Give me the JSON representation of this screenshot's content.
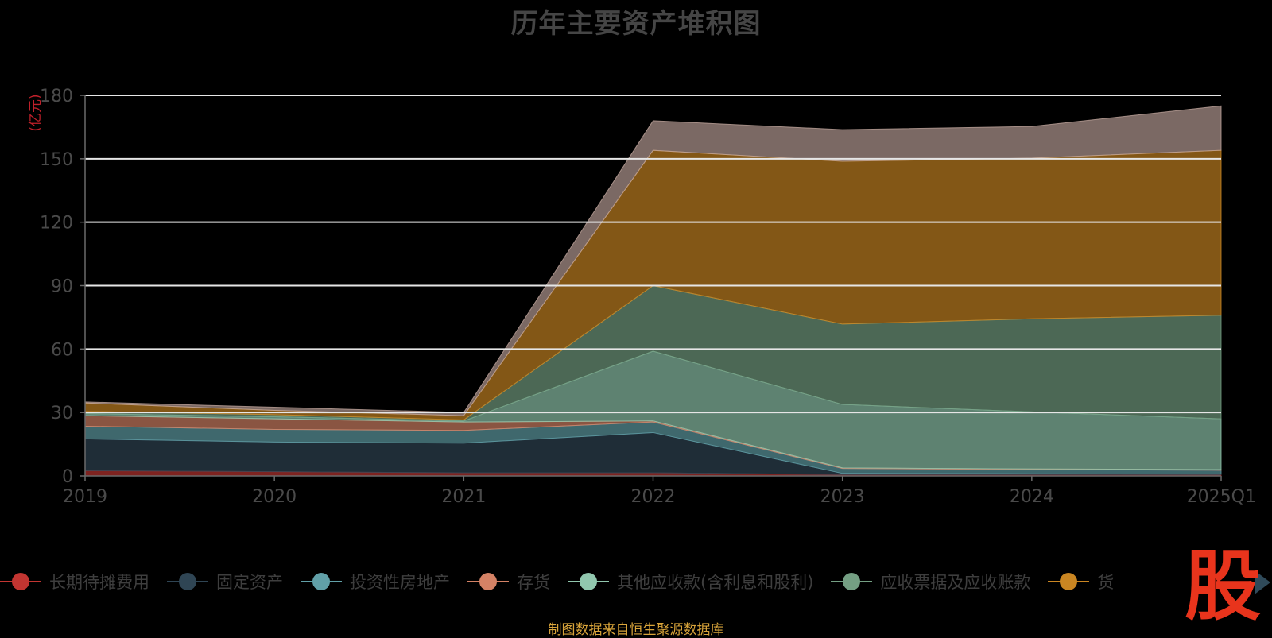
{
  "colors": {
    "background": "#000000",
    "grid": "#e6e6e6",
    "axis_text": "#4a4a4a",
    "unit_text": "#c0202a",
    "source_text": "#d9a43a",
    "watermark": "#e8341c"
  },
  "watermark_text": "股",
  "source_note": "制图数据来自恒生聚源数据库",
  "chart_data": {
    "type": "area",
    "stacked": true,
    "title": "历年主要资产堆积图",
    "ylabel": "(亿元)",
    "xlabel": "",
    "ylim": [
      0,
      180
    ],
    "yticks": [
      0,
      30,
      60,
      90,
      120,
      150,
      180
    ],
    "grid": true,
    "legend_position": "bottom",
    "categories": [
      "2019",
      "2020",
      "2021",
      "2022",
      "2023",
      "2024",
      "2025Q1"
    ],
    "series": [
      {
        "name": "长期待摊费用",
        "color": "#c23531",
        "values": [
          2.5,
          2.0,
          1.5,
          1.5,
          0.6,
          0.6,
          0.6
        ]
      },
      {
        "name": "固定资产",
        "color": "#2f4554",
        "values": [
          15,
          14,
          14,
          19,
          0.6,
          0.4,
          0.3
        ]
      },
      {
        "name": "投资性房地产",
        "color": "#61a0a8",
        "values": [
          6,
          6,
          6,
          5,
          2.3,
          2.0,
          1.8
        ]
      },
      {
        "name": "存货",
        "color": "#d48265",
        "values": [
          5,
          5,
          4,
          0.5,
          0.3,
          0.3,
          0.3
        ]
      },
      {
        "name": "其他应收款(含利息和股利)",
        "color": "#91c7ae",
        "values": [
          1,
          1,
          0.5,
          33,
          30,
          27,
          24
        ]
      },
      {
        "name": "应收票据及应收账款",
        "color": "#749f83",
        "values": [
          1,
          1,
          0.5,
          31,
          38,
          44,
          49
        ]
      },
      {
        "name": "货币资金",
        "color": "#ca8622",
        "values": [
          4,
          2,
          2,
          64,
          77,
          76,
          78
        ]
      },
      {
        "name": "",
        "color": "#bda29a",
        "values": [
          0.5,
          1.5,
          1.5,
          14,
          15,
          15,
          21
        ]
      }
    ],
    "visible_legend_labels": [
      "长期待摊费用",
      "固定资产",
      "投资性房地产",
      "存货",
      "其他应收款(含利息和股利)",
      "应收票据及应收账款",
      "货"
    ]
  }
}
